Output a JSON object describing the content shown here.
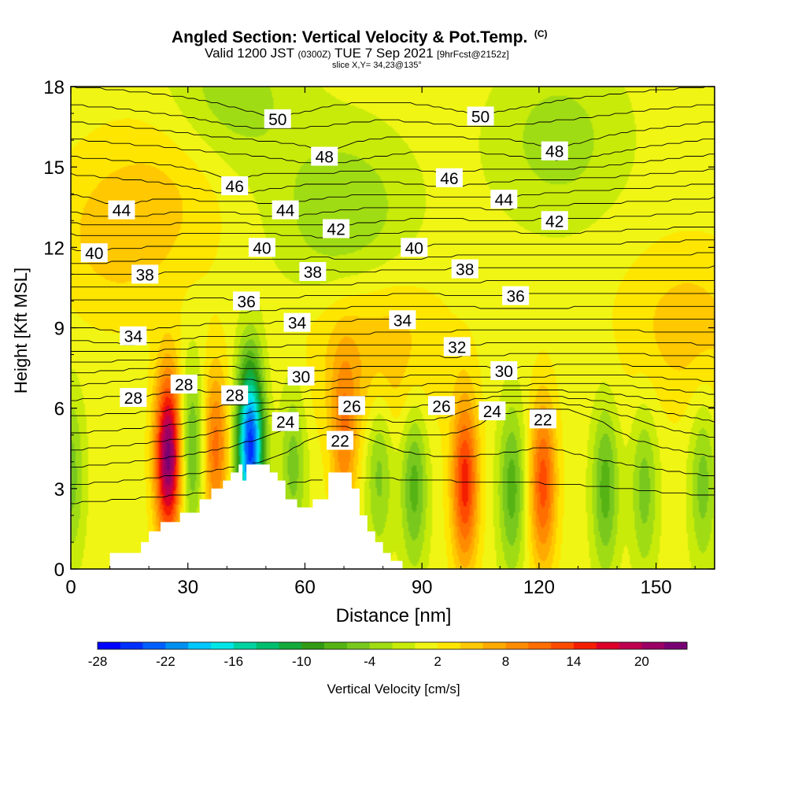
{
  "header": {
    "title": "Angled Section: Vertical Velocity & Pot.Temp.",
    "title_mark": "(C)",
    "valid_prefix": "Valid 1200 JST",
    "valid_utc": "(0300Z)",
    "valid_date": "TUE 7 Sep 2021",
    "forecast": "[9hrFcst@2152z]",
    "slice": "slice X,Y= 34,23@135°"
  },
  "chart_data": {
    "type": "heatmap",
    "xlabel": "Distance [nm]",
    "ylabel": "Height [Kft MSL]",
    "xlim": [
      0,
      165
    ],
    "ylim": [
      0,
      18
    ],
    "x_ticks": [
      0,
      30,
      60,
      90,
      120,
      150
    ],
    "y_ticks": [
      0,
      3,
      6,
      9,
      12,
      15,
      18
    ],
    "grid": false,
    "colorbar": {
      "label": "Vertical Velocity [cm/s]",
      "placement": "bottom",
      "tick_labels": [
        "-28",
        "-22",
        "-16",
        "-10",
        "-4",
        "2",
        "8",
        "14",
        "20"
      ],
      "levels": [
        -28,
        -26,
        -24,
        -22,
        -20,
        -18,
        -16,
        -14,
        -12,
        -10,
        -8,
        -6,
        -4,
        -2,
        0,
        2,
        4,
        6,
        8,
        10,
        12,
        14,
        16,
        18,
        20,
        22,
        24
      ],
      "colors": [
        "#0000ff",
        "#0030ff",
        "#0060ff",
        "#0090f0",
        "#00c8ff",
        "#00e6e6",
        "#00d2a0",
        "#00be6e",
        "#14aa3c",
        "#329b14",
        "#55b414",
        "#78c81e",
        "#a0dc14",
        "#c8eb0a",
        "#f0f514",
        "#ffe600",
        "#ffc800",
        "#ffaa00",
        "#ff8c00",
        "#ff6e00",
        "#ff4b00",
        "#f51e00",
        "#dc0028",
        "#be0050",
        "#9b0064",
        "#780073"
      ]
    },
    "vertical_velocity_features": [
      {
        "x": 0,
        "y": 3.5,
        "value": -6
      },
      {
        "x": 25,
        "y": 4.2,
        "value": 22
      },
      {
        "x": 31,
        "y": 4.5,
        "value": -8
      },
      {
        "x": 37,
        "y": 4.5,
        "value": 10
      },
      {
        "x": 46,
        "y": 4.6,
        "value": -26
      },
      {
        "x": 57,
        "y": 4.0,
        "value": -6
      },
      {
        "x": 70,
        "y": 4.8,
        "value": 8
      },
      {
        "x": 79,
        "y": 3.8,
        "value": -6
      },
      {
        "x": 88,
        "y": 3.2,
        "value": -8
      },
      {
        "x": 101,
        "y": 3.2,
        "value": 14
      },
      {
        "x": 113,
        "y": 3.0,
        "value": -8
      },
      {
        "x": 121,
        "y": 3.2,
        "value": 12
      },
      {
        "x": 137,
        "y": 3.0,
        "value": -8
      },
      {
        "x": 147,
        "y": 3.0,
        "value": -6
      },
      {
        "x": 162,
        "y": 3.2,
        "value": -6
      },
      {
        "x": 12,
        "y": 12.5,
        "value": 4
      },
      {
        "x": 30,
        "y": 15.0,
        "value": 3
      },
      {
        "x": 70,
        "y": 13.2,
        "value": -5
      },
      {
        "x": 78,
        "y": 8.0,
        "value": 5
      },
      {
        "x": 40,
        "y": 17.3,
        "value": -5
      },
      {
        "x": 125,
        "y": 16.0,
        "value": -4
      },
      {
        "x": 158,
        "y": 9.0,
        "value": 4
      }
    ],
    "terrain": [
      [
        0,
        0
      ],
      [
        10,
        0
      ],
      [
        10,
        0.6
      ],
      [
        18,
        0.6
      ],
      [
        18,
        1.0
      ],
      [
        20,
        1.0
      ],
      [
        20,
        1.4
      ],
      [
        23,
        1.4
      ],
      [
        23,
        1.75
      ],
      [
        28,
        1.75
      ],
      [
        28,
        2.1
      ],
      [
        33,
        2.1
      ],
      [
        33,
        2.6
      ],
      [
        36,
        2.6
      ],
      [
        36,
        3.0
      ],
      [
        39,
        3.0
      ],
      [
        39,
        3.3
      ],
      [
        41,
        3.3
      ],
      [
        41,
        3.6
      ],
      [
        43,
        3.6
      ],
      [
        43,
        3.9
      ],
      [
        44,
        3.9
      ],
      [
        44,
        3.3
      ],
      [
        45,
        3.3
      ],
      [
        45,
        3.9
      ],
      [
        51,
        3.9
      ],
      [
        51,
        3.6
      ],
      [
        53,
        3.6
      ],
      [
        53,
        3.3
      ],
      [
        55,
        3.3
      ],
      [
        55,
        2.6
      ],
      [
        58,
        2.6
      ],
      [
        58,
        2.3
      ],
      [
        62,
        2.3
      ],
      [
        62,
        2.6
      ],
      [
        66,
        2.6
      ],
      [
        66,
        3.6
      ],
      [
        72,
        3.6
      ],
      [
        72,
        3.0
      ],
      [
        74,
        3.0
      ],
      [
        74,
        2.0
      ],
      [
        76,
        2.0
      ],
      [
        76,
        1.4
      ],
      [
        78,
        1.4
      ],
      [
        78,
        1.0
      ],
      [
        80,
        1.0
      ],
      [
        80,
        0.6
      ],
      [
        82,
        0.6
      ],
      [
        82,
        0.3
      ],
      [
        85,
        0.3
      ],
      [
        85,
        0
      ],
      [
        165,
        0
      ]
    ],
    "isentropes": {
      "units": "C",
      "min": 22,
      "max": 52,
      "step": 1,
      "labels": [
        {
          "x": 53,
          "y": 16.8,
          "text": "50"
        },
        {
          "x": 105,
          "y": 16.9,
          "text": "50"
        },
        {
          "x": 65,
          "y": 15.4,
          "text": "48"
        },
        {
          "x": 124,
          "y": 15.6,
          "text": "48"
        },
        {
          "x": 42,
          "y": 14.3,
          "text": "46"
        },
        {
          "x": 97,
          "y": 14.6,
          "text": "46"
        },
        {
          "x": 13,
          "y": 13.4,
          "text": "44"
        },
        {
          "x": 55,
          "y": 13.4,
          "text": "44"
        },
        {
          "x": 111,
          "y": 13.8,
          "text": "44"
        },
        {
          "x": 68,
          "y": 12.7,
          "text": "42"
        },
        {
          "x": 124,
          "y": 13.0,
          "text": "42"
        },
        {
          "x": 6,
          "y": 11.8,
          "text": "40"
        },
        {
          "x": 49,
          "y": 12.0,
          "text": "40"
        },
        {
          "x": 88,
          "y": 12.0,
          "text": "40"
        },
        {
          "x": 19,
          "y": 11.0,
          "text": "38"
        },
        {
          "x": 62,
          "y": 11.1,
          "text": "38"
        },
        {
          "x": 101,
          "y": 11.2,
          "text": "38"
        },
        {
          "x": 45,
          "y": 10.0,
          "text": "36"
        },
        {
          "x": 114,
          "y": 10.2,
          "text": "36"
        },
        {
          "x": 16,
          "y": 8.7,
          "text": "34"
        },
        {
          "x": 58,
          "y": 9.2,
          "text": "34"
        },
        {
          "x": 85,
          "y": 9.3,
          "text": "34"
        },
        {
          "x": 99,
          "y": 8.3,
          "text": "32"
        },
        {
          "x": 59,
          "y": 7.2,
          "text": "30"
        },
        {
          "x": 111,
          "y": 7.4,
          "text": "30"
        },
        {
          "x": 16,
          "y": 6.4,
          "text": "28"
        },
        {
          "x": 29,
          "y": 6.9,
          "text": "28"
        },
        {
          "x": 42,
          "y": 6.5,
          "text": "28"
        },
        {
          "x": 72,
          "y": 6.1,
          "text": "26"
        },
        {
          "x": 95,
          "y": 6.1,
          "text": "26"
        },
        {
          "x": 55,
          "y": 5.5,
          "text": "24"
        },
        {
          "x": 108,
          "y": 5.9,
          "text": "24"
        },
        {
          "x": 121,
          "y": 5.6,
          "text": "22"
        },
        {
          "x": 69,
          "y": 4.8,
          "text": "22"
        }
      ]
    }
  }
}
